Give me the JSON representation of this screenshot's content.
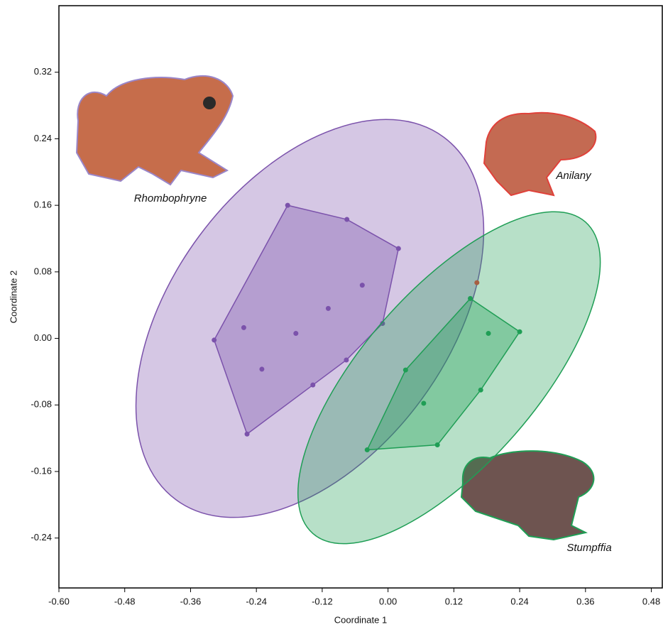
{
  "chart_data": {
    "type": "scatter",
    "x_label": "Coordinate 1",
    "y_label": "Coordinate 2",
    "xlim": [
      -0.6,
      0.5
    ],
    "ylim": [
      -0.3,
      0.4
    ],
    "xticks": [
      {
        "value": -0.6,
        "label": "-0.60"
      },
      {
        "value": -0.48,
        "label": "-0.48"
      },
      {
        "value": -0.36,
        "label": "-0.36"
      },
      {
        "value": -0.24,
        "label": "-0.24"
      },
      {
        "value": -0.12,
        "label": "-0.12"
      },
      {
        "value": 0,
        "label": "0.00"
      },
      {
        "value": 0.12,
        "label": "0.12"
      },
      {
        "value": 0.24,
        "label": "0.24"
      },
      {
        "value": 0.36,
        "label": "0.36"
      },
      {
        "value": 0.48,
        "label": "0.48"
      }
    ],
    "yticks": [
      {
        "value": -0.24,
        "label": "-0.24"
      },
      {
        "value": -0.16,
        "label": "-0.16"
      },
      {
        "value": -0.08,
        "label": "-0.08"
      },
      {
        "value": 0,
        "label": "0.00"
      },
      {
        "value": 0.08,
        "label": "0.08"
      },
      {
        "value": 0.16,
        "label": "0.16"
      },
      {
        "value": 0.24,
        "label": "0.24"
      },
      {
        "value": 0.32,
        "label": "0.32"
      }
    ],
    "series": [
      {
        "name": "Rhombophryne",
        "color": "#7b52ab",
        "x": [
          -0.183,
          -0.075,
          0.019,
          -0.047,
          -0.109,
          -0.01,
          -0.168,
          -0.263,
          -0.317,
          -0.076,
          -0.23,
          -0.137,
          -0.257
        ],
        "values": [
          0.16,
          0.143,
          0.108,
          0.064,
          0.036,
          0.018,
          0.006,
          0.013,
          -0.002,
          -0.026,
          -0.037,
          -0.056,
          -0.115
        ]
      },
      {
        "name": "Anilany",
        "color": "#e8413a",
        "x": [
          0.162
        ],
        "values": [
          0.067
        ]
      },
      {
        "name": "Stumpffia",
        "color": "#1f9e55",
        "x": [
          0.15,
          0.24,
          0.183,
          0.032,
          0.169,
          0.065,
          0.09,
          -0.038
        ],
        "values": [
          0.048,
          0.008,
          0.006,
          -0.038,
          -0.062,
          -0.078,
          -0.128,
          -0.134
        ]
      }
    ]
  }
}
